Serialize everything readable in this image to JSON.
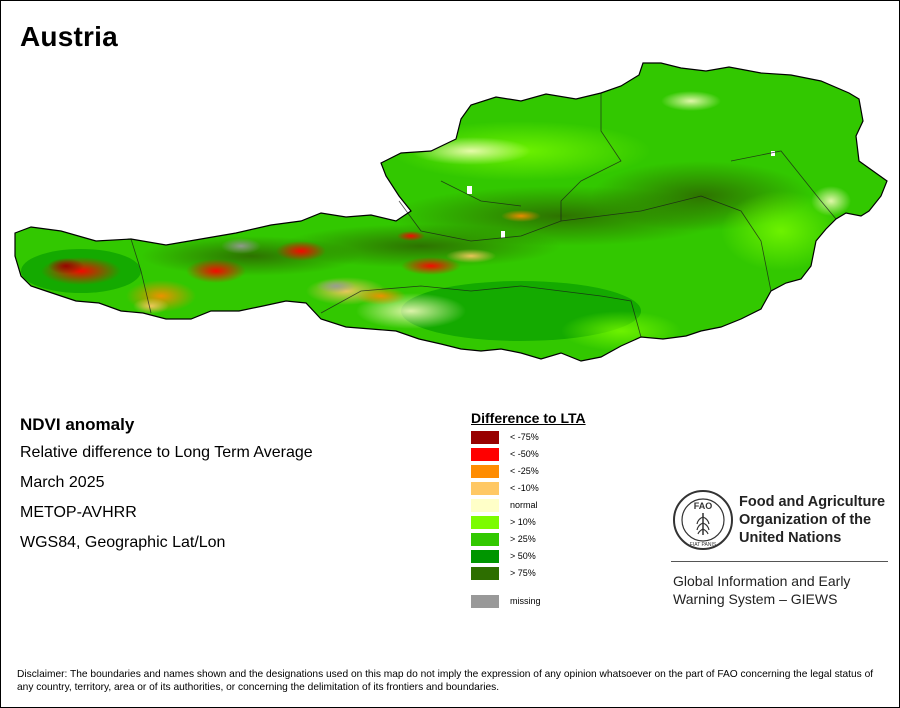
{
  "title": "Austria",
  "info": {
    "heading": "NDVI anomaly",
    "lines": [
      "Relative difference to Long Term Average",
      "March 2025",
      "METOP-AVHRR",
      "WGS84, Geographic Lat/Lon"
    ]
  },
  "legend": {
    "title": "Difference to LTA",
    "items": [
      {
        "label": "< -75%",
        "color": "#990000"
      },
      {
        "label": "< -50%",
        "color": "#ff0000"
      },
      {
        "label": "< -25%",
        "color": "#ff8c00"
      },
      {
        "label": "< -10%",
        "color": "#ffc864"
      },
      {
        "label": "normal",
        "color": "#ffffc8"
      },
      {
        "label": "> 10%",
        "color": "#7cfc00"
      },
      {
        "label": "> 25%",
        "color": "#32c800"
      },
      {
        "label": "> 50%",
        "color": "#009600"
      },
      {
        "label": "> 75%",
        "color": "#2d6e00"
      }
    ],
    "missing": {
      "label": "missing",
      "color": "#999999"
    }
  },
  "fao": {
    "name_lines": [
      "Food and Agriculture",
      "Organization of the",
      "United Nations"
    ],
    "logo_text": [
      "FAO",
      "FIAT PANIS"
    ]
  },
  "giews": {
    "lines": [
      "Global Information and Early",
      "Warning System – GIEWS"
    ]
  },
  "disclaimer": "Disclaimer: The boundaries and names shown and the designations used on this map do not imply the expression of any opinion whatsoever on the part of FAO concerning the legal status of any country, territory, area or of its authorities, or concerning the delimitation of its frontiers and boundaries."
}
